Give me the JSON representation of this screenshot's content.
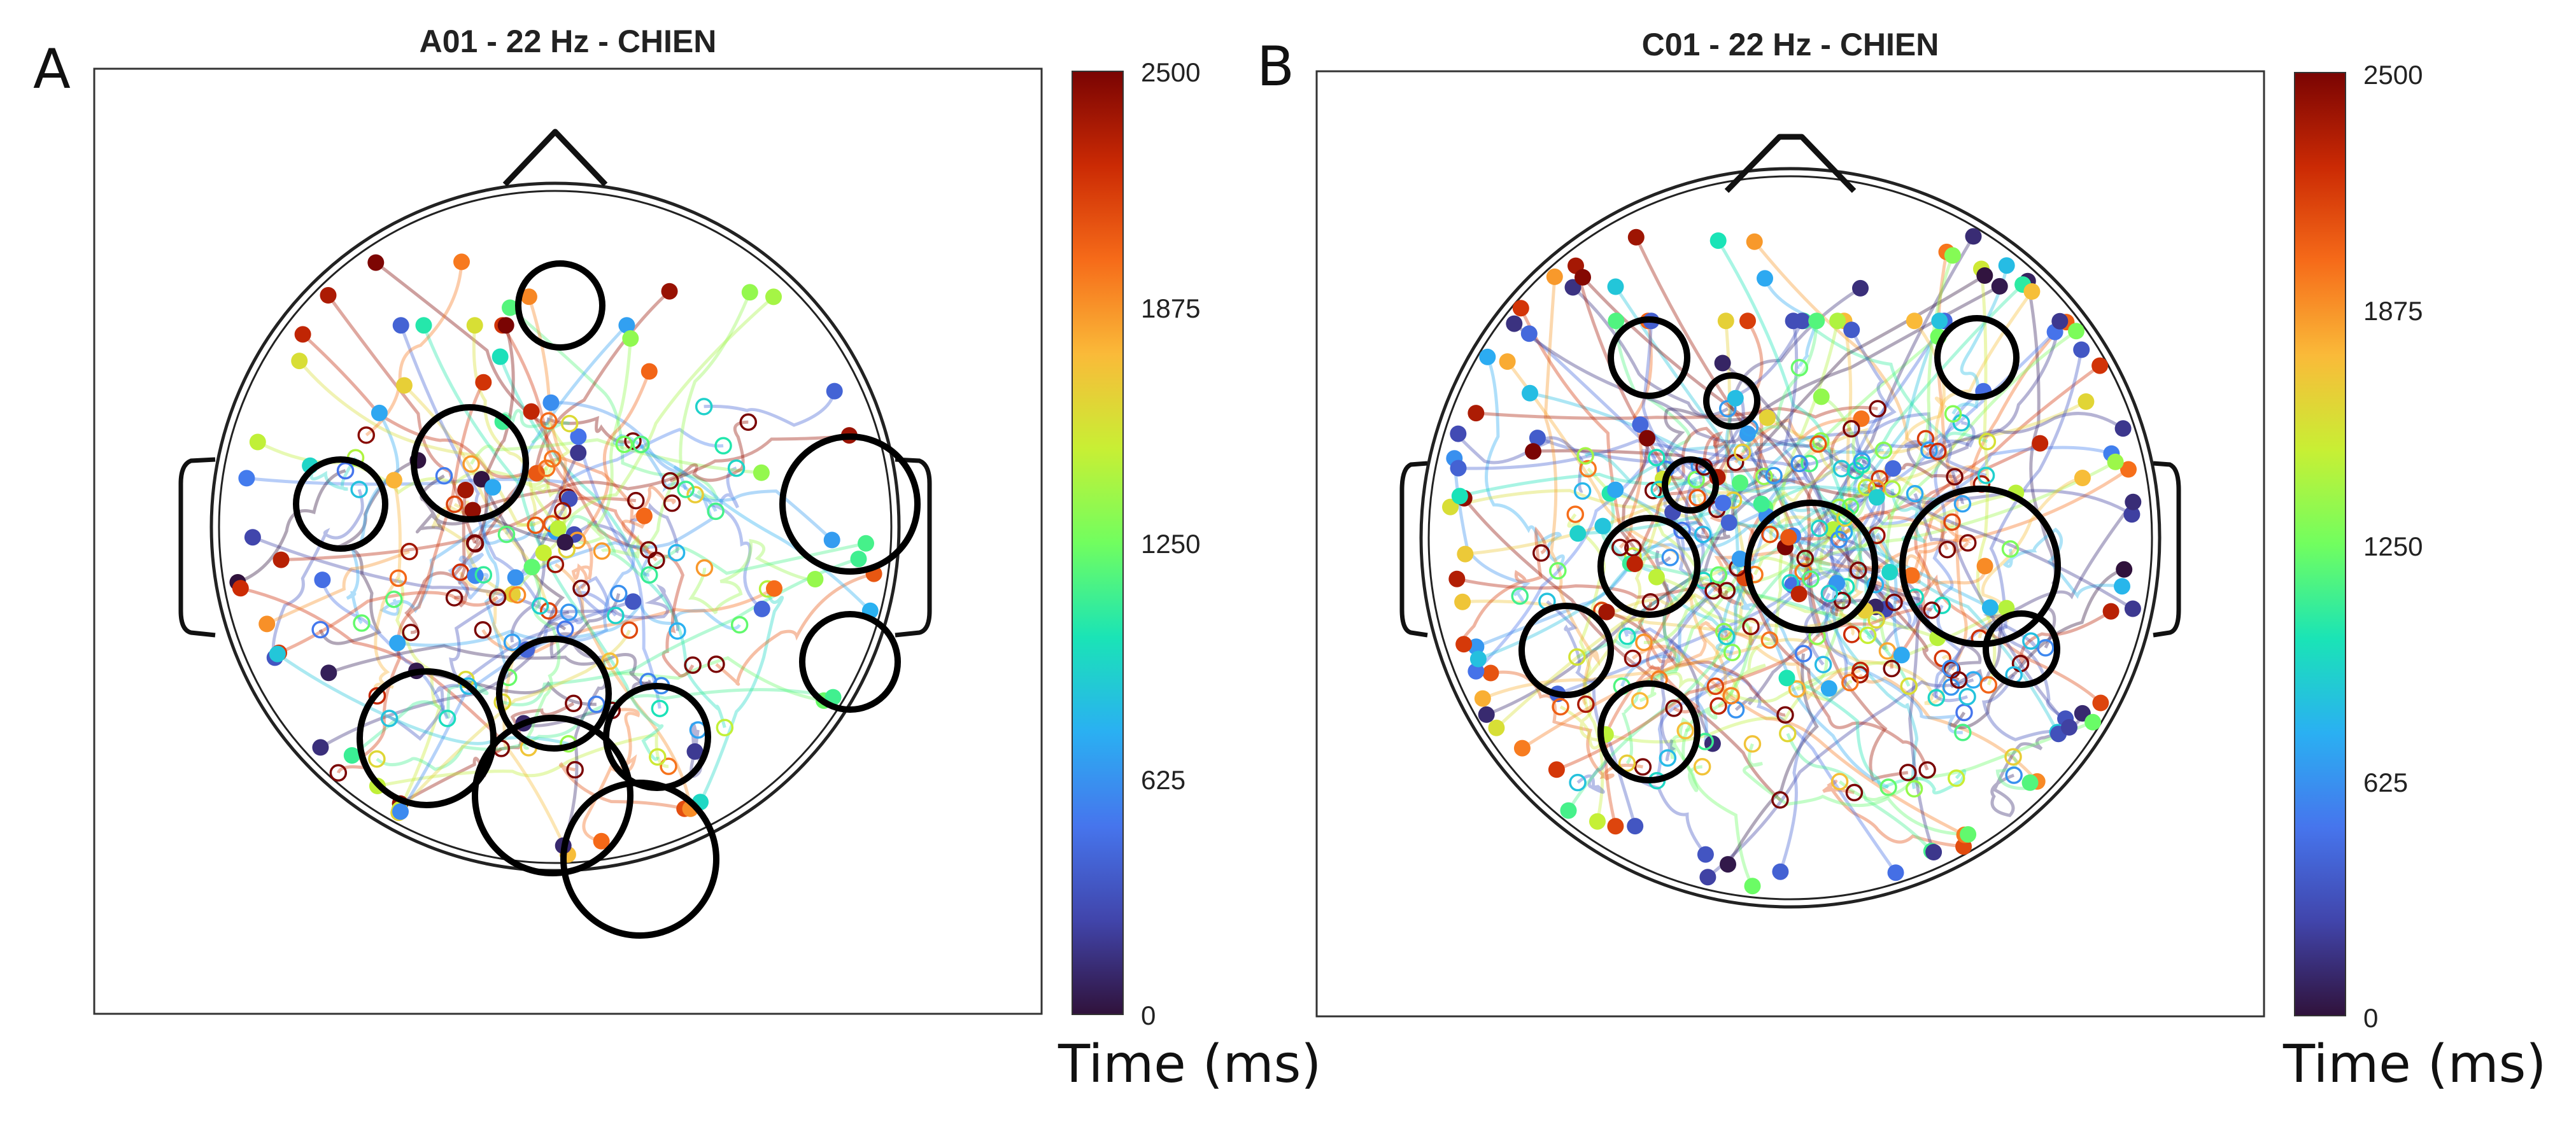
{
  "figure": {
    "panels": [
      {
        "letter": "A",
        "title": "A01 - 22 Hz - CHIEN"
      },
      {
        "letter": "B",
        "title": "C01 - 22 Hz - CHIEN"
      }
    ]
  },
  "chart_data": [
    {
      "type": "scatter",
      "title": "A01 - 22 Hz - CHIEN",
      "colorbar": {
        "label": "Time (ms)",
        "min": 0,
        "max": 2500,
        "ticks": [
          0,
          625,
          1250,
          1875,
          2500
        ],
        "colormap": "turbo"
      },
      "grid": false,
      "legend": "none",
      "trajectories": 90,
      "circled_regions": 11
    },
    {
      "type": "scatter",
      "title": "C01 - 22 Hz - CHIEN",
      "colorbar": {
        "label": "Time (ms)",
        "min": 0,
        "max": 2500,
        "ticks": [
          0,
          625,
          1250,
          1875,
          2500
        ],
        "colormap": "turbo"
      },
      "grid": false,
      "legend": "none",
      "trajectories": 160,
      "circled_regions": 11
    }
  ]
}
